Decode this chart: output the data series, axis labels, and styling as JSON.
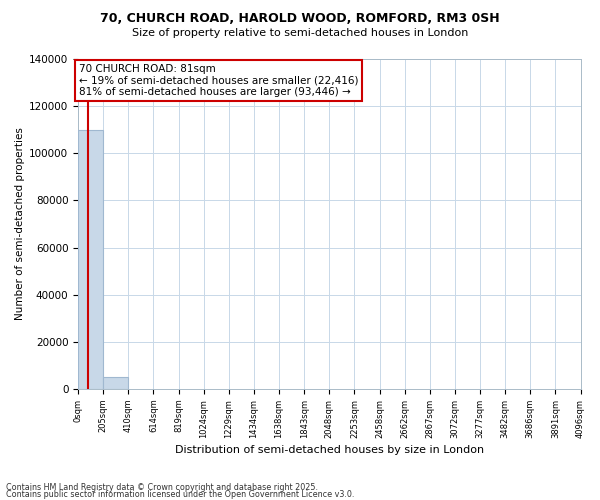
{
  "title": "70, CHURCH ROAD, HAROLD WOOD, ROMFORD, RM3 0SH",
  "subtitle": "Size of property relative to semi-detached houses in London",
  "xlabel": "Distribution of semi-detached houses by size in London",
  "ylabel": "Number of semi-detached properties",
  "property_size": 81,
  "property_label": "70 CHURCH ROAD: 81sqm",
  "pct_smaller": 19,
  "pct_larger": 81,
  "n_smaller": 22416,
  "n_larger": 93446,
  "annotation_line1": "70 CHURCH ROAD: 81sqm",
  "annotation_line2": "← 19% of semi-detached houses are smaller (22,416)",
  "annotation_line3": "81% of semi-detached houses are larger (93,446) →",
  "bar_color": "#c8d8e8",
  "bar_edge_color": "#a0b8d0",
  "highlight_color": "#cc0000",
  "annotation_box_bg": "#ffffff",
  "annotation_box_border": "#cc0000",
  "grid_color": "#c8d8e8",
  "ylim": [
    0,
    140000
  ],
  "yticks": [
    0,
    20000,
    40000,
    60000,
    80000,
    100000,
    120000,
    140000
  ],
  "bin_edges": [
    0,
    205,
    410,
    614,
    819,
    1024,
    1229,
    1434,
    1638,
    1843,
    2048,
    2253,
    2458,
    2662,
    2867,
    3072,
    3277,
    3482,
    3686,
    3891,
    4096
  ],
  "bin_labels": [
    "0sqm",
    "205sqm",
    "410sqm",
    "614sqm",
    "819sqm",
    "1024sqm",
    "1229sqm",
    "1434sqm",
    "1638sqm",
    "1843sqm",
    "2048sqm",
    "2253sqm",
    "2458sqm",
    "2662sqm",
    "2867sqm",
    "3072sqm",
    "3277sqm",
    "3482sqm",
    "3686sqm",
    "3891sqm",
    "4096sqm"
  ],
  "bar_heights": [
    110000,
    5000,
    0,
    0,
    0,
    0,
    0,
    0,
    0,
    0,
    0,
    0,
    0,
    0,
    0,
    0,
    0,
    0,
    0,
    0
  ],
  "footnote1": "Contains HM Land Registry data © Crown copyright and database right 2025.",
  "footnote2": "Contains public sector information licensed under the Open Government Licence v3.0."
}
